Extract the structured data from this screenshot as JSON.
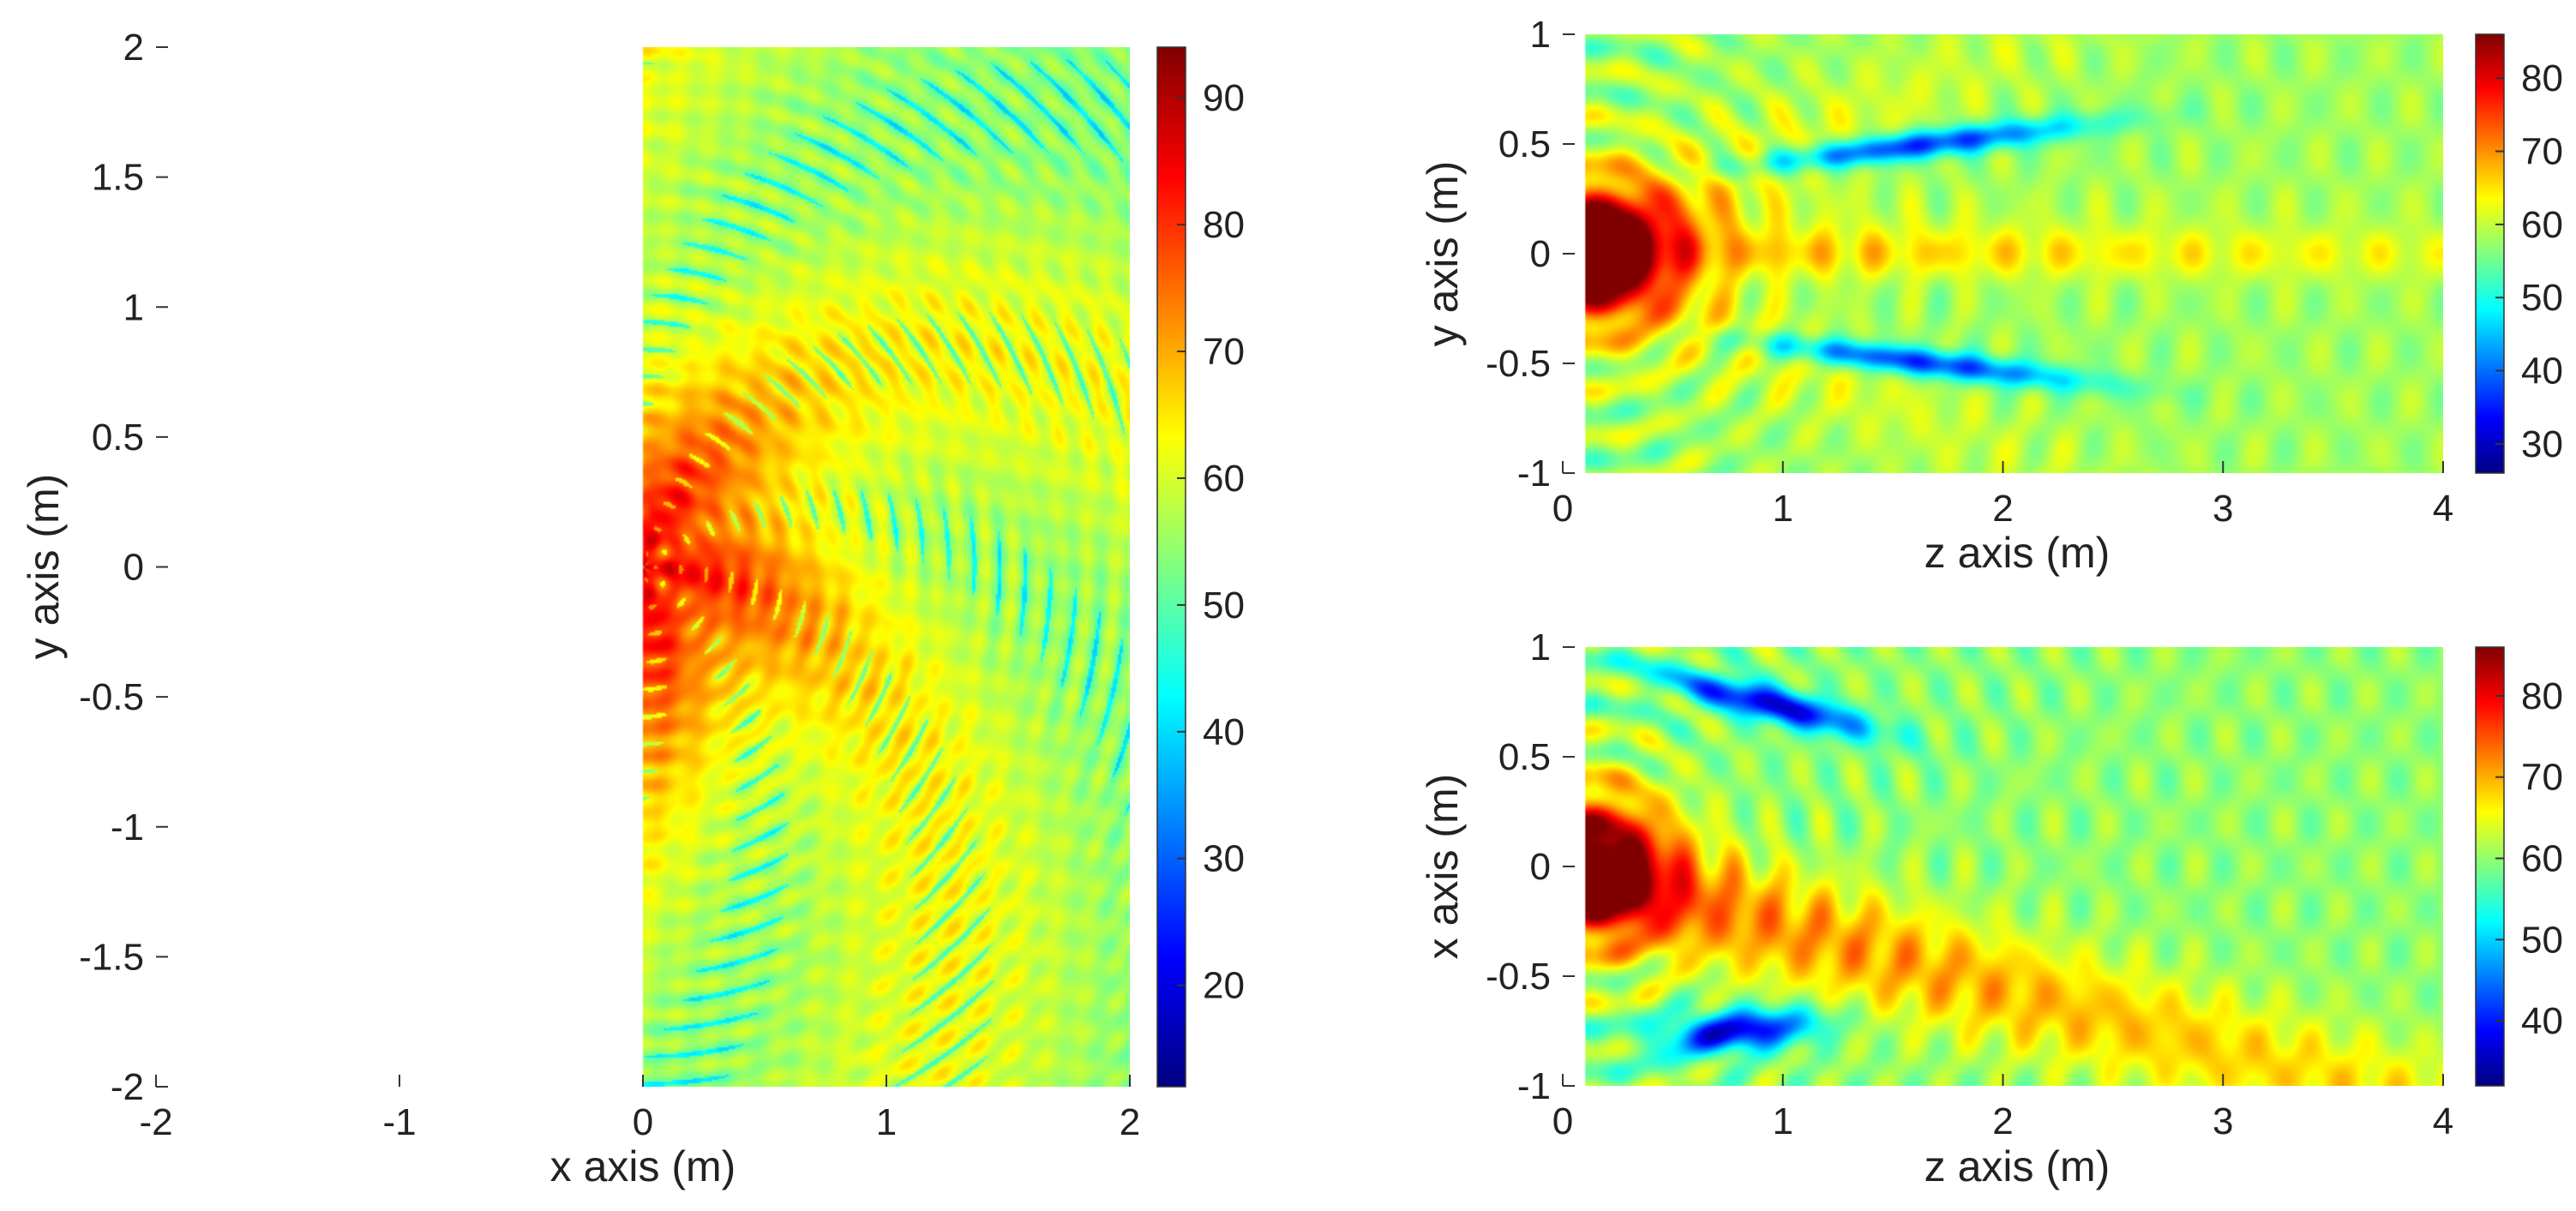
{
  "chart_data": [
    {
      "type": "heatmap",
      "field": "radial-spiral",
      "xlabel": "x axis (m)",
      "ylabel": "y axis (m)",
      "xlim": [
        -2,
        2
      ],
      "ylim": [
        -2,
        2
      ],
      "xticks": [
        "-2",
        "-1",
        "0",
        "1",
        "2"
      ],
      "yticks": [
        "2",
        "1.5",
        "1",
        "0.5",
        "0",
        "-0.5",
        "-1",
        "-1.5",
        "-2"
      ],
      "colorbar": {
        "min": 12,
        "max": 94,
        "ticks": [
          "90",
          "80",
          "70",
          "60",
          "50",
          "40",
          "30",
          "20"
        ]
      },
      "colormap": "jet",
      "grid": false
    },
    {
      "type": "heatmap",
      "field": "beam-yz",
      "xlabel": "z axis (m)",
      "ylabel": "y axis (m)",
      "xlim": [
        0,
        4
      ],
      "ylim": [
        -1,
        1
      ],
      "xticks": [
        "0",
        "1",
        "2",
        "3",
        "4"
      ],
      "yticks": [
        "1",
        "0.5",
        "0",
        "-0.5",
        "-1"
      ],
      "colorbar": {
        "min": 26,
        "max": 86,
        "ticks": [
          "80",
          "70",
          "60",
          "50",
          "40",
          "30"
        ]
      },
      "colormap": "jet",
      "grid": false
    },
    {
      "type": "heatmap",
      "field": "beam-xz",
      "xlabel": "z axis (m)",
      "ylabel": "x axis (m)",
      "xlim": [
        0,
        4
      ],
      "ylim": [
        -1,
        1
      ],
      "xticks": [
        "0",
        "1",
        "2",
        "3",
        "4"
      ],
      "yticks": [
        "1",
        "0.5",
        "0",
        "-0.5",
        "-1"
      ],
      "colorbar": {
        "min": 32,
        "max": 86,
        "ticks": [
          "80",
          "70",
          "60",
          "50",
          "40"
        ]
      },
      "colormap": "jet",
      "grid": false
    }
  ]
}
